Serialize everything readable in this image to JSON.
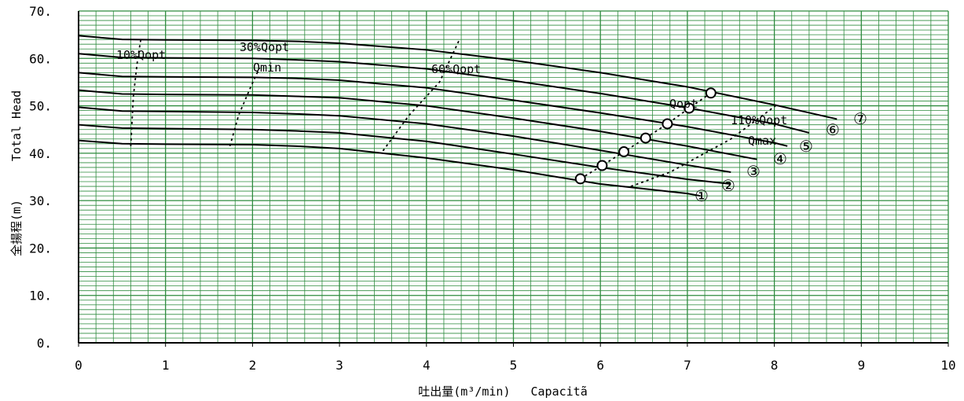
{
  "chart_data": {
    "type": "line",
    "title": "",
    "xlabel_ja": "吐出量(m³/min)",
    "xlabel_en": "Capacitã",
    "ylabel_ja": "全揚程(m)",
    "ylabel_en": "Total Head",
    "xlim": [
      0,
      10
    ],
    "ylim": [
      0,
      70
    ],
    "x_ticks": [
      "0",
      "1",
      "2",
      "3",
      "4",
      "5",
      "6",
      "7",
      "8",
      "9",
      "10"
    ],
    "y_ticks": [
      "0.",
      "10.",
      "20.",
      "30.",
      "40.",
      "50.",
      "60.",
      "70."
    ],
    "grid": true,
    "grid_color": "#2e8b3e",
    "series": [
      {
        "name": "①",
        "x": [
          0,
          0.5,
          1,
          2,
          2.5,
          3,
          4,
          5,
          6,
          7,
          7.15
        ],
        "y": [
          42.7,
          42.0,
          41.9,
          41.8,
          41.5,
          41.0,
          39.0,
          36.5,
          33.5,
          31.5,
          31.0
        ],
        "bep": [
          5.77,
          34.6
        ]
      },
      {
        "name": "②",
        "x": [
          0,
          0.5,
          1,
          2,
          2.5,
          3,
          4,
          5,
          6,
          7,
          7.5
        ],
        "y": [
          46.0,
          45.3,
          45.2,
          45.0,
          44.7,
          44.3,
          42.5,
          39.8,
          37.0,
          34.5,
          33.5
        ],
        "bep": [
          6.02,
          37.4
        ]
      },
      {
        "name": "③",
        "x": [
          0,
          0.5,
          1,
          2,
          2.5,
          3,
          4,
          5,
          6,
          7,
          7.5
        ],
        "y": [
          49.7,
          48.9,
          48.8,
          48.6,
          48.3,
          47.9,
          46.2,
          43.6,
          40.6,
          37.5,
          36.0
        ],
        "bep": [
          6.27,
          40.3
        ]
      },
      {
        "name": "④",
        "x": [
          0,
          0.5,
          1,
          2,
          2.5,
          3,
          4,
          5,
          6,
          7,
          7.8
        ],
        "y": [
          53.3,
          52.5,
          52.4,
          52.3,
          52.0,
          51.7,
          50.0,
          47.4,
          44.6,
          41.5,
          38.7
        ],
        "bep": [
          6.52,
          43.2
        ]
      },
      {
        "name": "⑤",
        "x": [
          0,
          0.5,
          1,
          2,
          2.5,
          3,
          4,
          5,
          6,
          7,
          8,
          8.15
        ],
        "y": [
          57.0,
          56.2,
          56.1,
          56.0,
          55.8,
          55.4,
          53.8,
          51.2,
          48.5,
          45.6,
          42.2,
          41.5
        ],
        "bep": [
          6.77,
          46.2
        ]
      },
      {
        "name": "⑥",
        "x": [
          0,
          0.5,
          1,
          2,
          2.5,
          3,
          4,
          5,
          6,
          7,
          8,
          8.4
        ],
        "y": [
          61.0,
          60.2,
          60.1,
          60.0,
          59.7,
          59.3,
          57.8,
          55.3,
          52.6,
          49.6,
          46.2,
          44.3
        ],
        "bep": [
          7.02,
          49.5
        ]
      },
      {
        "name": "⑦",
        "x": [
          0,
          0.5,
          1,
          2,
          2.5,
          3,
          4,
          5,
          6,
          7,
          8,
          8.72
        ],
        "y": [
          64.8,
          64.0,
          63.9,
          63.8,
          63.6,
          63.2,
          61.8,
          59.6,
          57.0,
          54.0,
          50.2,
          47.2
        ],
        "bep": [
          7.27,
          52.7
        ]
      }
    ],
    "guide_lines": [
      {
        "label": "10%Qopt",
        "x": [
          0.6,
          0.63,
          0.68,
          0.72
        ],
        "y": [
          41.5,
          52.0,
          60.0,
          64.5
        ]
      },
      {
        "label": "30%Qopt",
        "x": [
          1.74,
          1.84,
          1.98,
          2.08
        ],
        "y": [
          41.5,
          48.0,
          54.0,
          58.0
        ]
      },
      {
        "label": "Qmin",
        "x": [],
        "y": []
      },
      {
        "label": "60%Qopt",
        "x": [
          3.5,
          3.8,
          4.15,
          4.38
        ],
        "y": [
          40.5,
          48.0,
          55.0,
          64.0
        ]
      },
      {
        "label": "Qopt",
        "x": [
          5.77,
          6.02,
          6.27,
          6.52,
          6.77,
          7.02,
          7.27
        ],
        "y": [
          34.6,
          37.4,
          40.3,
          43.2,
          46.2,
          49.5,
          52.7
        ]
      },
      {
        "label": "110%Qopt",
        "x": [
          6.35,
          6.8,
          7.5,
          8.05
        ],
        "y": [
          33.0,
          36.0,
          43.0,
          50.5
        ]
      },
      {
        "label": "Qmax",
        "x": [],
        "y": []
      }
    ]
  }
}
